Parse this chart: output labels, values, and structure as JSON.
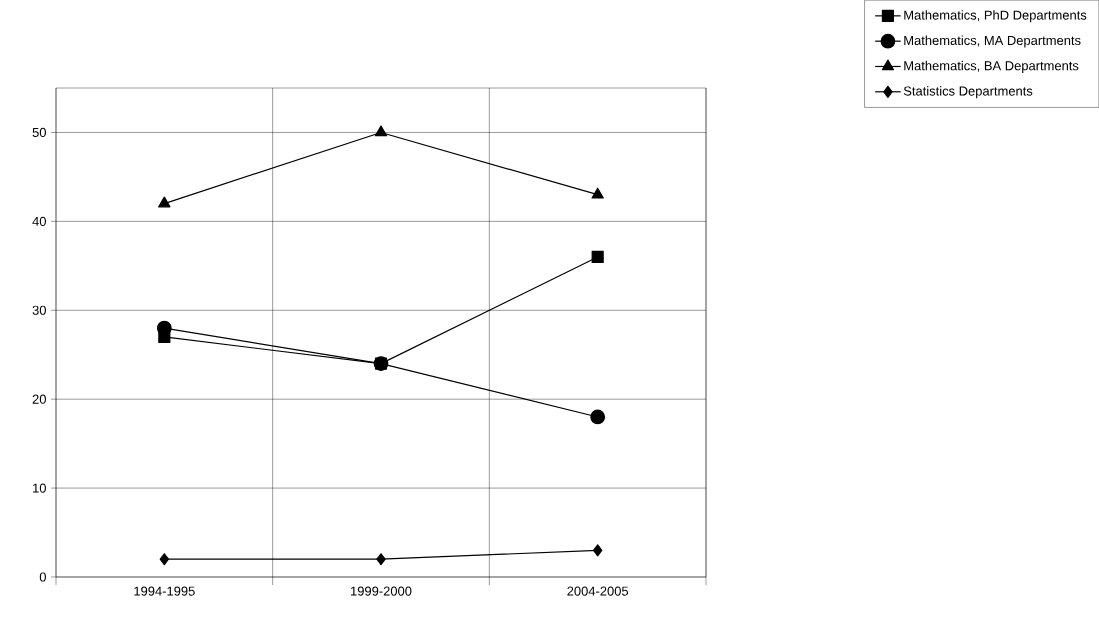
{
  "chart_data": {
    "type": "line",
    "categories": [
      "1994-1995",
      "1999-2000",
      "2004-2005"
    ],
    "ylim": [
      0,
      55
    ],
    "yticks": [
      0,
      10,
      20,
      30,
      40,
      50
    ],
    "grid": true,
    "legend": "top right",
    "line_style": "solid",
    "series": [
      {
        "name": "Mathematics, PhD Departments",
        "color": "#000000",
        "marker": "square",
        "values": [
          27,
          24,
          36
        ]
      },
      {
        "name": "Mathematics, MA Departments",
        "color": "#000000",
        "marker": "circle",
        "values": [
          28,
          24,
          18
        ]
      },
      {
        "name": "Mathematics, BA Departments",
        "color": "#000000",
        "marker": "triangle",
        "values": [
          42,
          50,
          43
        ]
      },
      {
        "name": "Statistics Departments",
        "color": "#000000",
        "marker": "diamond",
        "values": [
          2,
          2,
          3
        ]
      }
    ]
  }
}
